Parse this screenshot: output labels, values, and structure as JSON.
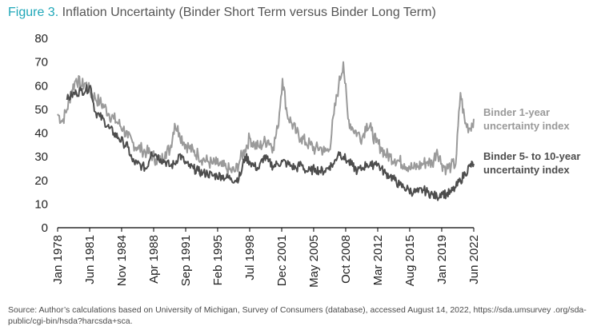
{
  "figure": {
    "number": "Figure 3.",
    "title": "Inflation Uncertainty (Binder Short Term versus Binder Long Term)"
  },
  "source_note": "Source: Author’s calculations based on University of Michigan, Survey of Consumers (database), accessed August 14, 2022, https://sda.umsurvey .org/sda-public/cgi-bin/hsda?harcsda+sca.",
  "colors": {
    "short_term": "#9a9a9a",
    "long_term": "#4d4d4d",
    "axis": "#000000",
    "title_accent": "#1fa7b8"
  },
  "chart_data": {
    "type": "line",
    "title": "Inflation Uncertainty (Binder Short Term versus Binder Long Term)",
    "xlabel": "",
    "ylabel": "",
    "ylim": [
      0,
      80
    ],
    "yticks": [
      0,
      10,
      20,
      30,
      40,
      50,
      60,
      70,
      80
    ],
    "xlim": [
      1978.0,
      2022.42
    ],
    "grid": false,
    "legend": "right, inline labels",
    "xtick_labels": [
      "Jan 1978",
      "Jun 1981",
      "Nov 1984",
      "Apr 1988",
      "Sep 1991",
      "Feb 1995",
      "Jul 1998",
      "Dec 2001",
      "May 2005",
      "Oct 2008",
      "Mar 2012",
      "Aug 2015",
      "Jan 2019",
      "Jun 2022"
    ],
    "xtick_values": [
      1978.0,
      1981.42,
      1984.83,
      1988.25,
      1991.67,
      1995.08,
      1998.5,
      2001.92,
      2005.33,
      2008.75,
      2012.17,
      2015.58,
      2019.0,
      2022.42
    ],
    "series": [
      {
        "name": "Binder 1-year uncertainty index",
        "label_lines": [
          "Binder 1-year",
          "uncertainty index"
        ],
        "color": "#9a9a9a",
        "x": [
          1978.0,
          1978.5,
          1979.0,
          1979.5,
          1980.0,
          1980.5,
          1981.0,
          1981.5,
          1982.0,
          1982.5,
          1983.0,
          1983.5,
          1984.0,
          1984.5,
          1985.0,
          1985.5,
          1986.0,
          1986.5,
          1987.0,
          1987.5,
          1988.0,
          1988.5,
          1989.0,
          1989.5,
          1990.0,
          1990.5,
          1991.0,
          1991.5,
          1992.0,
          1992.5,
          1993.0,
          1993.5,
          1994.0,
          1994.5,
          1995.0,
          1995.5,
          1996.0,
          1996.5,
          1997.0,
          1997.5,
          1998.0,
          1998.5,
          1999.0,
          1999.5,
          2000.0,
          2000.5,
          2001.0,
          2001.5,
          2002.0,
          2002.5,
          2003.0,
          2003.5,
          2004.0,
          2004.5,
          2005.0,
          2005.5,
          2006.0,
          2006.5,
          2007.0,
          2007.5,
          2008.0,
          2008.5,
          2009.0,
          2009.5,
          2010.0,
          2010.5,
          2011.0,
          2011.5,
          2012.0,
          2012.5,
          2013.0,
          2013.5,
          2014.0,
          2014.5,
          2015.0,
          2015.5,
          2016.0,
          2016.5,
          2017.0,
          2017.5,
          2018.0,
          2018.5,
          2019.0,
          2019.5,
          2020.0,
          2020.5,
          2021.0,
          2021.5,
          2022.0,
          2022.42
        ],
        "values": [
          48,
          45,
          50,
          58,
          63,
          60,
          61,
          57,
          55,
          53,
          51,
          48,
          46,
          44,
          42,
          38,
          36,
          34,
          33,
          32,
          31,
          29,
          28,
          32,
          33,
          44,
          40,
          36,
          34,
          32,
          31,
          29,
          28,
          27,
          27,
          26,
          25,
          24,
          24,
          29,
          33,
          38,
          35,
          34,
          36,
          37,
          34,
          42,
          63,
          48,
          44,
          40,
          38,
          36,
          35,
          33,
          34,
          32,
          33,
          48,
          60,
          70,
          46,
          42,
          40,
          38,
          44,
          41,
          36,
          34,
          31,
          30,
          29,
          28,
          27,
          26,
          25,
          26,
          27,
          28,
          27,
          33,
          27,
          25,
          26,
          27,
          57,
          44,
          42,
          46
        ]
      },
      {
        "name": "Binder 5- to 10-year uncertainty index",
        "label_lines": [
          "Binder 5- to 10-year",
          "uncertainty index"
        ],
        "color": "#4d4d4d",
        "x": [
          1979.0,
          1979.5,
          1980.0,
          1980.5,
          1981.0,
          1981.5,
          1982.0,
          1982.5,
          1983.0,
          1983.5,
          1984.0,
          1984.5,
          1985.0,
          1985.5,
          1986.0,
          1986.5,
          1987.0,
          1987.5,
          1988.0,
          1988.5,
          1989.0,
          1989.5,
          1990.0,
          1990.5,
          1991.0,
          1991.5,
          1992.0,
          1992.5,
          1993.0,
          1993.5,
          1994.0,
          1994.5,
          1995.0,
          1995.5,
          1996.0,
          1996.5,
          1997.0,
          1997.5,
          1998.0,
          1998.5,
          1999.0,
          1999.5,
          2000.0,
          2000.5,
          2001.0,
          2001.5,
          2002.0,
          2002.5,
          2003.0,
          2003.5,
          2004.0,
          2004.5,
          2005.0,
          2005.5,
          2006.0,
          2006.5,
          2007.0,
          2007.5,
          2008.0,
          2008.5,
          2009.0,
          2009.5,
          2010.0,
          2010.5,
          2011.0,
          2011.5,
          2012.0,
          2012.5,
          2013.0,
          2013.5,
          2014.0,
          2014.5,
          2015.0,
          2015.5,
          2016.0,
          2016.5,
          2017.0,
          2017.5,
          2018.0,
          2018.5,
          2019.0,
          2019.5,
          2020.0,
          2020.5,
          2021.0,
          2021.5,
          2022.0,
          2022.42
        ],
        "values": [
          54,
          56,
          57,
          58,
          58,
          60,
          49,
          47,
          45,
          42,
          40,
          38,
          36,
          34,
          28,
          27,
          26,
          25,
          32,
          31,
          29,
          28,
          26,
          27,
          31,
          28,
          26,
          25,
          24,
          23,
          23,
          22,
          22,
          22,
          21,
          21,
          20,
          22,
          30,
          28,
          26,
          25,
          30,
          28,
          26,
          27,
          28,
          27,
          26,
          25,
          27,
          24,
          24,
          25,
          24,
          24,
          26,
          27,
          32,
          30,
          28,
          26,
          24,
          25,
          27,
          26,
          28,
          25,
          23,
          22,
          20,
          18,
          17,
          16,
          15,
          15,
          16,
          15,
          14,
          13,
          15,
          14,
          15,
          17,
          20,
          23,
          26,
          27
        ]
      }
    ]
  }
}
